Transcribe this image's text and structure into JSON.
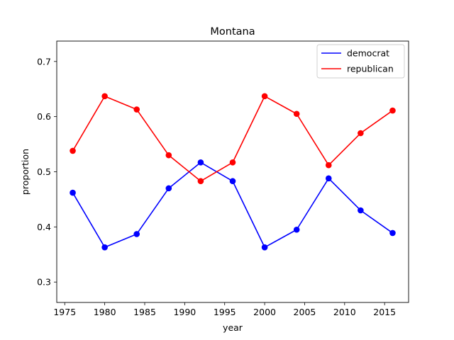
{
  "chart_data": {
    "type": "line",
    "title": "Montana",
    "xlabel": "year",
    "ylabel": "proportion",
    "x": [
      1976,
      1980,
      1984,
      1988,
      1992,
      1996,
      2000,
      2004,
      2008,
      2012,
      2016
    ],
    "xlim": [
      1974.0,
      2018.0
    ],
    "ylim": [
      0.263,
      0.737
    ],
    "xticks": [
      1975,
      1980,
      1985,
      1990,
      1995,
      2000,
      2005,
      2010,
      2015
    ],
    "yticks": [
      0.3,
      0.4,
      0.5,
      0.6,
      0.7
    ],
    "grid": false,
    "legend_position": "top-right",
    "series": [
      {
        "name": "democrat",
        "color": "#0000ff",
        "values": [
          0.462,
          0.363,
          0.387,
          0.47,
          0.517,
          0.483,
          0.363,
          0.395,
          0.488,
          0.43,
          0.389
        ]
      },
      {
        "name": "republican",
        "color": "#ff0000",
        "values": [
          0.538,
          0.637,
          0.613,
          0.53,
          0.483,
          0.517,
          0.637,
          0.605,
          0.512,
          0.57,
          0.611
        ]
      }
    ]
  }
}
